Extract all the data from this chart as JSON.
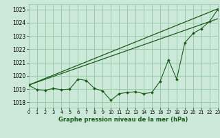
{
  "bg_color": "#cce8d8",
  "grid_color": "#99ccaa",
  "line_color": "#1a5c1a",
  "title": "Graphe pression niveau de la mer (hPa)",
  "xlim": [
    0,
    23
  ],
  "ylim": [
    1017.6,
    1025.4
  ],
  "yticks": [
    1018,
    1019,
    1020,
    1021,
    1022,
    1023,
    1024,
    1025
  ],
  "xticks": [
    0,
    1,
    2,
    3,
    4,
    5,
    6,
    7,
    8,
    9,
    10,
    11,
    12,
    13,
    14,
    15,
    16,
    17,
    18,
    19,
    20,
    21,
    22,
    23
  ],
  "line1_x": [
    0,
    23
  ],
  "line1_y": [
    1019.3,
    1025.05
  ],
  "line2_x": [
    0,
    23
  ],
  "line2_y": [
    1019.3,
    1024.3
  ],
  "line3_x": [
    0,
    1,
    2,
    3,
    4,
    5,
    6,
    7,
    8,
    9,
    10,
    11,
    12,
    13,
    14,
    15,
    16,
    17,
    18,
    19,
    20,
    21,
    22,
    23
  ],
  "line3_y": [
    1019.3,
    1018.95,
    1018.9,
    1019.05,
    1018.95,
    1019.0,
    1019.75,
    1019.65,
    1019.05,
    1018.85,
    1018.15,
    1018.65,
    1018.75,
    1018.8,
    1018.65,
    1018.75,
    1019.6,
    1021.2,
    1019.75,
    1022.5,
    1023.2,
    1023.55,
    1024.1,
    1025.0
  ]
}
